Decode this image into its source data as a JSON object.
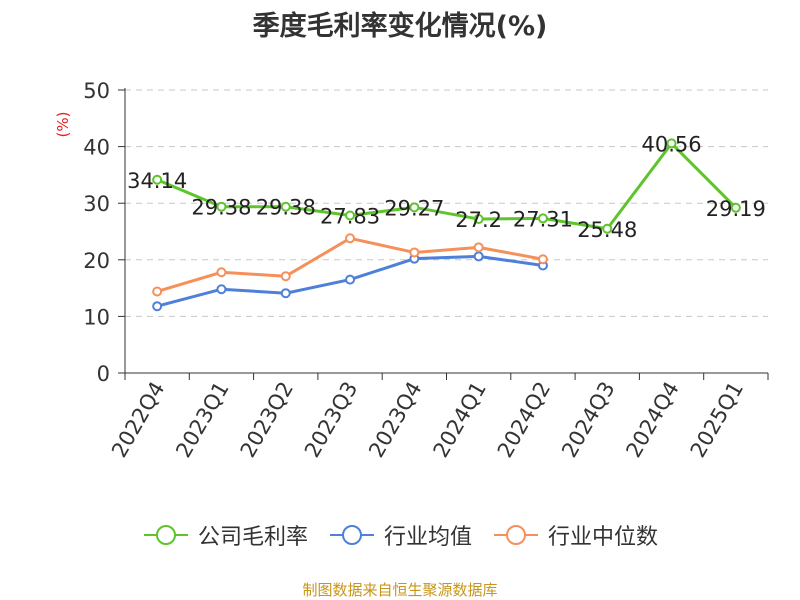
{
  "chart_data": {
    "type": "line",
    "title": "季度毛利率变化情况(%)",
    "ylabel": "(%)",
    "xlabel": "",
    "ylim": [
      0,
      50
    ],
    "yticks": [
      0,
      10,
      20,
      30,
      40,
      50
    ],
    "grid": true,
    "legend": "bottom-center",
    "categories": [
      "2022Q4",
      "2023Q1",
      "2023Q2",
      "2023Q3",
      "2023Q4",
      "2024Q1",
      "2024Q2",
      "2024Q3",
      "2024Q4",
      "2025Q1"
    ],
    "series": [
      {
        "name": "公司毛利率",
        "color": "#5ec42b",
        "show_labels": true,
        "values": [
          34.14,
          29.38,
          29.38,
          27.83,
          29.27,
          27.2,
          27.31,
          25.48,
          40.56,
          29.19
        ],
        "labels": [
          "34.14",
          "29.38",
          "29.38",
          "27.83",
          "29.27",
          "27.2",
          "27.31",
          "25.48",
          "40.56",
          "29.19"
        ]
      },
      {
        "name": "行业均值",
        "color": "#4e7fd9",
        "show_labels": false,
        "values": [
          11.8,
          14.8,
          14.1,
          16.5,
          20.2,
          20.6,
          19.0,
          null,
          null,
          null
        ]
      },
      {
        "name": "行业中位数",
        "color": "#f5905a",
        "show_labels": false,
        "values": [
          14.4,
          17.8,
          17.1,
          23.8,
          21.3,
          22.2,
          20.1,
          null,
          null,
          null
        ]
      }
    ]
  },
  "source": "制图数据来自恒生聚源数据库"
}
